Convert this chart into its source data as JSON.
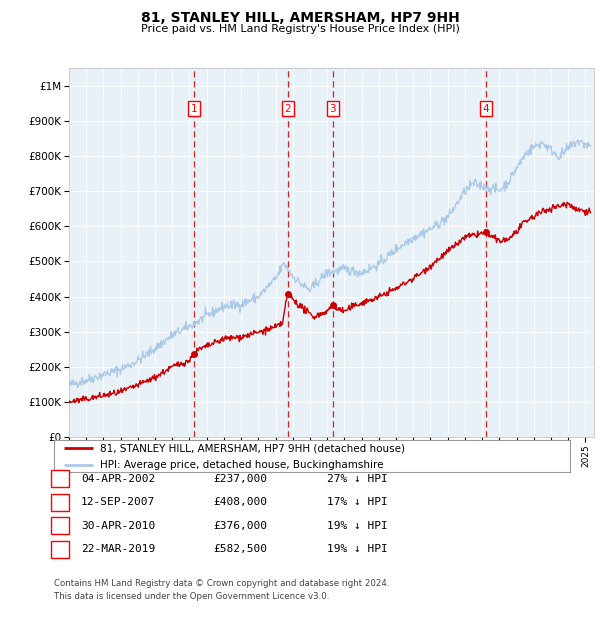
{
  "title": "81, STANLEY HILL, AMERSHAM, HP7 9HH",
  "subtitle": "Price paid vs. HM Land Registry's House Price Index (HPI)",
  "legend_line1": "81, STANLEY HILL, AMERSHAM, HP7 9HH (detached house)",
  "legend_line2": "HPI: Average price, detached house, Buckinghamshire",
  "footer_line1": "Contains HM Land Registry data © Crown copyright and database right 2024.",
  "footer_line2": "This data is licensed under the Open Government Licence v3.0.",
  "hpi_color": "#aac8e8",
  "price_color": "#cc0000",
  "plot_bg_color": "#e8f0f8",
  "grid_color": "#ffffff",
  "transactions": [
    {
      "num": 1,
      "date": "04-APR-2002",
      "price": 237000,
      "pct": "27%",
      "year": 2002.25
    },
    {
      "num": 2,
      "date": "12-SEP-2007",
      "price": 408000,
      "pct": "17%",
      "year": 2007.7
    },
    {
      "num": 3,
      "date": "30-APR-2010",
      "price": 376000,
      "pct": "19%",
      "year": 2010.33
    },
    {
      "num": 4,
      "date": "22-MAR-2019",
      "price": 582500,
      "pct": "19%",
      "year": 2019.22
    }
  ],
  "ylim": [
    0,
    1050000
  ],
  "xlim_start": 1995.0,
  "xlim_end": 2025.5,
  "yticks": [
    0,
    100000,
    200000,
    300000,
    400000,
    500000,
    600000,
    700000,
    800000,
    900000,
    1000000
  ],
  "ytick_labels": [
    "£0",
    "£100K",
    "£200K",
    "£300K",
    "£400K",
    "£500K",
    "£600K",
    "£700K",
    "£800K",
    "£900K",
    "£1M"
  ]
}
